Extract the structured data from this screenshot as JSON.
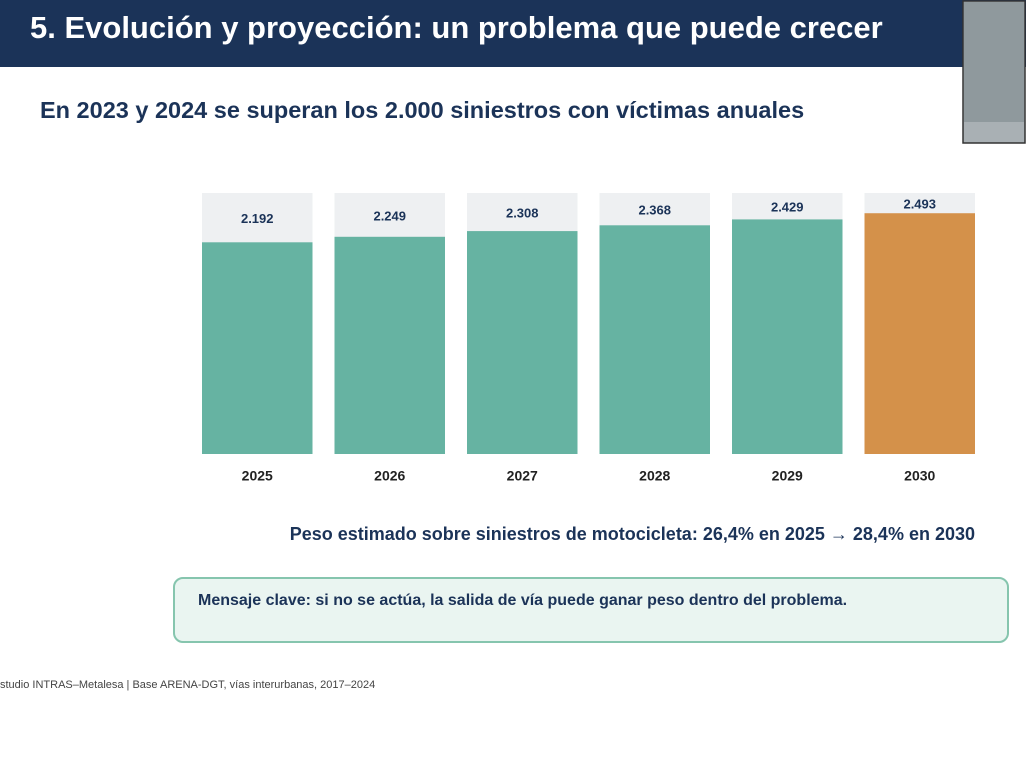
{
  "header": {
    "title": "5. Evolución y proyección: un problema que puede crecer"
  },
  "subtitle": "En 2023 y 2024 se superan los 2.000 siniestros con víctimas anuales",
  "chart_data": {
    "type": "bar",
    "categories": [
      "2025",
      "2026",
      "2027",
      "2028",
      "2029",
      "2030"
    ],
    "values": [
      2192,
      2249,
      2308,
      2368,
      2429,
      2493
    ],
    "value_labels": [
      "2.192",
      "2.249",
      "2.308",
      "2.368",
      "2.429",
      "2.493"
    ],
    "colors": [
      "#66b3a2",
      "#66b3a2",
      "#66b3a2",
      "#66b3a2",
      "#66b3a2",
      "#d4914a"
    ]
  },
  "note": "Peso estimado sobre siniestros de motocicleta: 26,4% en 2025 → 28,4% en 2030",
  "message": "Mensaje clave: si no se actúa, la salida de vía puede ganar peso dentro del problema.",
  "source": "studio INTRAS–Metalesa | Base ARENA-DGT, vías interurbanas, 2017–2024"
}
